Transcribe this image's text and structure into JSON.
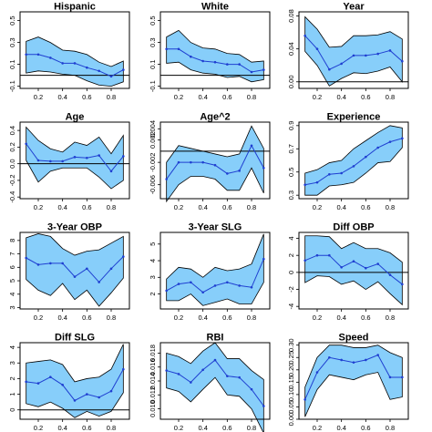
{
  "chart_data": [
    {
      "type": "line",
      "title": "Hispanic",
      "x": [
        0.1,
        0.2,
        0.3,
        0.4,
        0.5,
        0.6,
        0.7,
        0.8,
        0.9
      ],
      "series": [
        {
          "role": "estimate",
          "values": [
            0.19,
            0.19,
            0.16,
            0.11,
            0.11,
            0.07,
            0.04,
            -0.01,
            0.05
          ]
        },
        {
          "role": "upper",
          "values": [
            0.31,
            0.35,
            0.3,
            0.23,
            0.22,
            0.19,
            0.12,
            0.08,
            0.13
          ]
        },
        {
          "role": "lower",
          "values": [
            0.02,
            0.04,
            0.03,
            0.01,
            0.0,
            -0.05,
            -0.09,
            -0.1,
            -0.06
          ]
        }
      ],
      "xlim": [
        0.05,
        0.95
      ],
      "ylim": [
        -0.12,
        0.58
      ],
      "xticks": [
        0.2,
        0.4,
        0.6,
        0.8
      ],
      "xtick_labels": [
        "0.2",
        "0.4",
        "0.6",
        "0.8"
      ],
      "yticks": [
        -0.1,
        0.1,
        0.3,
        0.5
      ],
      "ytick_labels": [
        "-0.1",
        "0.1",
        "0.3",
        "0.5"
      ],
      "reference_line": 0,
      "show_x_labels": true
    },
    {
      "type": "line",
      "title": "White",
      "x": [
        0.1,
        0.2,
        0.3,
        0.4,
        0.5,
        0.6,
        0.7,
        0.8,
        0.9
      ],
      "series": [
        {
          "role": "estimate",
          "values": [
            0.24,
            0.24,
            0.17,
            0.13,
            0.12,
            0.1,
            0.1,
            0.03,
            0.05
          ]
        },
        {
          "role": "upper",
          "values": [
            0.35,
            0.41,
            0.3,
            0.25,
            0.24,
            0.2,
            0.19,
            0.12,
            0.13
          ]
        },
        {
          "role": "lower",
          "values": [
            0.11,
            0.12,
            0.05,
            0.02,
            0.01,
            -0.02,
            -0.01,
            -0.06,
            -0.04
          ]
        }
      ],
      "xlim": [
        0.05,
        0.95
      ],
      "ylim": [
        -0.12,
        0.58
      ],
      "xticks": [
        0.2,
        0.4,
        0.6,
        0.8
      ],
      "xtick_labels": [
        "0.2",
        "0.4",
        "0.6",
        "0.8"
      ],
      "yticks": [
        -0.1,
        0.1,
        0.3,
        0.5
      ],
      "ytick_labels": [
        "-0.1",
        "0.1",
        "0.3",
        "0.5"
      ],
      "reference_line": 0,
      "show_x_labels": true
    },
    {
      "type": "line",
      "title": "Year",
      "x": [
        0.1,
        0.2,
        0.3,
        0.4,
        0.5,
        0.6,
        0.7,
        0.8,
        0.9
      ],
      "series": [
        {
          "role": "estimate",
          "values": [
            0.056,
            0.04,
            0.015,
            0.022,
            0.032,
            0.032,
            0.034,
            0.038,
            0.025
          ]
        },
        {
          "role": "upper",
          "values": [
            0.079,
            0.064,
            0.042,
            0.043,
            0.056,
            0.056,
            0.057,
            0.061,
            0.052
          ]
        },
        {
          "role": "lower",
          "values": [
            0.037,
            0.02,
            -0.005,
            0.004,
            0.011,
            0.01,
            0.013,
            0.018,
            0.0
          ]
        }
      ],
      "xlim": [
        0.05,
        0.95
      ],
      "ylim": [
        -0.008,
        0.085
      ],
      "xticks": [
        0.2,
        0.4,
        0.6,
        0.8
      ],
      "xtick_labels": [
        "0.2",
        "0.4",
        "0.6",
        "0.8"
      ],
      "yticks": [
        0.0,
        0.04,
        0.08
      ],
      "ytick_labels": [
        "0.00",
        "0.04",
        "0.08"
      ],
      "reference_line": 0,
      "show_x_labels": true
    },
    {
      "type": "line",
      "title": "Age",
      "x": [
        0.1,
        0.2,
        0.3,
        0.4,
        0.5,
        0.6,
        0.7,
        0.8,
        0.9
      ],
      "series": [
        {
          "role": "estimate",
          "values": [
            0.24,
            0.04,
            0.03,
            0.03,
            0.08,
            0.07,
            0.1,
            -0.09,
            0.09
          ]
        },
        {
          "role": "upper",
          "values": [
            0.44,
            0.28,
            0.18,
            0.14,
            0.26,
            0.22,
            0.32,
            0.12,
            0.34
          ]
        },
        {
          "role": "lower",
          "values": [
            0.04,
            -0.22,
            -0.09,
            -0.05,
            -0.05,
            -0.05,
            -0.16,
            -0.3,
            -0.2
          ]
        }
      ],
      "xlim": [
        0.05,
        0.95
      ],
      "ylim": [
        -0.42,
        0.5
      ],
      "xticks": [
        0.2,
        0.4,
        0.6,
        0.8
      ],
      "xtick_labels": [
        "0.2",
        "0.4",
        "0.6",
        "0.8"
      ],
      "yticks": [
        -0.4,
        -0.2,
        0.0,
        0.2,
        0.4
      ],
      "ytick_labels": [
        "-0.4",
        "-0.2",
        "0.0",
        "0.2",
        "0.4"
      ],
      "reference_line": 0,
      "show_x_labels": true
    },
    {
      "type": "line",
      "title": "Age^2",
      "x": [
        0.1,
        0.2,
        0.3,
        0.4,
        0.5,
        0.6,
        0.7,
        0.8,
        0.9
      ],
      "series": [
        {
          "role": "estimate",
          "values": [
            -0.005,
            -0.002,
            -0.002,
            -0.002,
            -0.0025,
            -0.004,
            -0.0035,
            0.001,
            -0.003
          ]
        },
        {
          "role": "upper",
          "values": [
            -0.002,
            0.001,
            0.0005,
            0.0,
            -0.0005,
            -0.001,
            -0.0005,
            0.0045,
            0.0005
          ]
        },
        {
          "role": "lower",
          "values": [
            -0.009,
            -0.006,
            -0.0045,
            -0.0045,
            -0.005,
            -0.007,
            -0.007,
            -0.003,
            -0.0075
          ]
        }
      ],
      "xlim": [
        0.05,
        0.95
      ],
      "ylim": [
        -0.0085,
        0.0052
      ],
      "xticks": [
        0.2,
        0.4,
        0.6,
        0.8
      ],
      "xtick_labels": [
        "0.2",
        "0.4",
        "0.6",
        "0.8"
      ],
      "yticks": [
        -0.006,
        -0.002,
        0.002
      ],
      "ytick_labels": [
        "-0.006",
        "-0.002",
        "0.002"
      ],
      "extra_ytick_labels": [
        {
          "value": 0.004,
          "label": "0.004"
        }
      ],
      "reference_line": 0,
      "show_x_labels": true
    },
    {
      "type": "line",
      "title": "Experience",
      "x": [
        0.1,
        0.2,
        0.3,
        0.4,
        0.5,
        0.6,
        0.7,
        0.8,
        0.9
      ],
      "series": [
        {
          "role": "estimate",
          "values": [
            0.39,
            0.41,
            0.48,
            0.49,
            0.55,
            0.63,
            0.71,
            0.76,
            0.79
          ]
        },
        {
          "role": "upper",
          "values": [
            0.49,
            0.52,
            0.58,
            0.6,
            0.7,
            0.77,
            0.84,
            0.9,
            0.88
          ]
        },
        {
          "role": "lower",
          "values": [
            0.3,
            0.3,
            0.38,
            0.39,
            0.41,
            0.49,
            0.58,
            0.59,
            0.71
          ]
        }
      ],
      "xlim": [
        0.05,
        0.95
      ],
      "ylim": [
        0.27,
        0.93
      ],
      "xticks": [
        0.2,
        0.4,
        0.6,
        0.8
      ],
      "xtick_labels": [
        "0.2",
        "0.4",
        "0.6",
        "0.8"
      ],
      "yticks": [
        0.3,
        0.5,
        0.7,
        0.9
      ],
      "ytick_labels": [
        "0.3",
        "0.5",
        "0.7",
        "0.9"
      ],
      "reference_line": null,
      "show_x_labels": true
    },
    {
      "type": "line",
      "title": "3-Year OBP",
      "x": [
        0.1,
        0.2,
        0.3,
        0.4,
        0.5,
        0.6,
        0.7,
        0.8,
        0.9
      ],
      "series": [
        {
          "role": "estimate",
          "values": [
            6.7,
            6.2,
            6.3,
            6.3,
            5.3,
            5.9,
            4.9,
            5.9,
            6.8
          ]
        },
        {
          "role": "upper",
          "values": [
            8.2,
            8.5,
            8.3,
            7.4,
            6.9,
            7.2,
            7.3,
            7.8,
            8.3
          ]
        },
        {
          "role": "lower",
          "values": [
            5.1,
            4.3,
            3.9,
            4.8,
            3.6,
            4.3,
            3.1,
            4.1,
            5.2
          ]
        }
      ],
      "xlim": [
        0.05,
        0.95
      ],
      "ylim": [
        2.9,
        8.6
      ],
      "xticks": [
        0.2,
        0.4,
        0.6,
        0.8
      ],
      "xtick_labels": [
        "0.2",
        "0.4",
        "0.6",
        "0.8"
      ],
      "yticks": [
        3,
        4,
        5,
        6,
        7,
        8
      ],
      "ytick_labels": [
        "3",
        "4",
        "5",
        "6",
        "7",
        "8"
      ],
      "reference_line": null,
      "show_x_labels": true
    },
    {
      "type": "line",
      "title": "3-Year SLG",
      "x": [
        0.1,
        0.2,
        0.3,
        0.4,
        0.5,
        0.6,
        0.7,
        0.8,
        0.9
      ],
      "series": [
        {
          "role": "estimate",
          "values": [
            2.2,
            2.6,
            2.7,
            2.1,
            2.5,
            2.7,
            2.5,
            2.4,
            4.1
          ]
        },
        {
          "role": "upper",
          "values": [
            2.9,
            3.6,
            3.5,
            3.0,
            3.6,
            3.4,
            3.5,
            3.8,
            5.6
          ]
        },
        {
          "role": "lower",
          "values": [
            1.6,
            1.6,
            2.0,
            1.3,
            1.5,
            1.7,
            1.4,
            1.4,
            2.7
          ]
        }
      ],
      "xlim": [
        0.05,
        0.95
      ],
      "ylim": [
        1.1,
        5.7
      ],
      "xticks": [
        0.2,
        0.4,
        0.6,
        0.8
      ],
      "xtick_labels": [
        "0.2",
        "0.4",
        "0.6",
        "0.8"
      ],
      "yticks": [
        2,
        3,
        4,
        5
      ],
      "ytick_labels": [
        "2",
        "3",
        "4",
        "5"
      ],
      "reference_line": null,
      "show_x_labels": true
    },
    {
      "type": "line",
      "title": "Diff OBP",
      "x": [
        0.1,
        0.2,
        0.3,
        0.4,
        0.5,
        0.6,
        0.7,
        0.8,
        0.9
      ],
      "series": [
        {
          "role": "estimate",
          "values": [
            1.4,
            2.0,
            2.0,
            0.6,
            1.3,
            0.5,
            1.0,
            -0.3,
            -1.4
          ]
        },
        {
          "role": "upper",
          "values": [
            4.3,
            4.3,
            4.2,
            2.8,
            3.5,
            2.8,
            2.8,
            2.3,
            1.2
          ]
        },
        {
          "role": "lower",
          "values": [
            -1.2,
            -0.4,
            -0.5,
            -1.4,
            -1.0,
            -2.0,
            -1.1,
            -2.5,
            -3.8
          ]
        }
      ],
      "xlim": [
        0.05,
        0.95
      ],
      "ylim": [
        -4.3,
        4.7
      ],
      "xticks": [
        0.2,
        0.4,
        0.6,
        0.8
      ],
      "xtick_labels": [
        "0.2",
        "0.4",
        "0.6",
        "0.8"
      ],
      "yticks": [
        -4,
        -2,
        0,
        2,
        4
      ],
      "ytick_labels": [
        "-4",
        "-2",
        "0",
        "2",
        "4"
      ],
      "reference_line": 0,
      "show_x_labels": true
    },
    {
      "type": "line",
      "title": "Diff SLG",
      "x": [
        0.1,
        0.2,
        0.3,
        0.4,
        0.5,
        0.6,
        0.7,
        0.8,
        0.9
      ],
      "series": [
        {
          "role": "estimate",
          "values": [
            1.8,
            1.7,
            2.1,
            1.6,
            0.6,
            1.0,
            0.8,
            1.2,
            2.6
          ]
        },
        {
          "role": "upper",
          "values": [
            3.0,
            3.1,
            3.2,
            2.9,
            1.8,
            2.0,
            2.1,
            2.6,
            4.2
          ]
        },
        {
          "role": "lower",
          "values": [
            0.4,
            0.2,
            0.5,
            0.1,
            -0.5,
            -0.1,
            -0.4,
            -0.1,
            1.1
          ]
        }
      ],
      "xlim": [
        0.05,
        0.95
      ],
      "ylim": [
        -0.6,
        4.3
      ],
      "xticks": [
        0.2,
        0.4,
        0.6,
        0.8
      ],
      "xtick_labels": [
        "0.2",
        "0.4",
        "0.6",
        "0.8"
      ],
      "yticks": [
        0,
        1,
        2,
        3,
        4
      ],
      "ytick_labels": [
        "0",
        "1",
        "2",
        "3",
        "4"
      ],
      "reference_line": 0,
      "show_x_labels": true
    },
    {
      "type": "line",
      "title": "RBI",
      "x": [
        0.1,
        0.2,
        0.3,
        0.4,
        0.5,
        0.6,
        0.7,
        0.8,
        0.9
      ],
      "series": [
        {
          "role": "estimate",
          "values": [
            0.0155,
            0.015,
            0.0138,
            0.0156,
            0.017,
            0.0147,
            0.0145,
            0.0128,
            0.0104
          ]
        },
        {
          "role": "upper",
          "values": [
            0.018,
            0.0175,
            0.0165,
            0.0183,
            0.0195,
            0.0172,
            0.0172,
            0.0155,
            0.0142
          ]
        },
        {
          "role": "lower",
          "values": [
            0.013,
            0.0125,
            0.011,
            0.0128,
            0.0145,
            0.012,
            0.0118,
            0.01,
            0.0065
          ]
        }
      ],
      "xlim": [
        0.05,
        0.95
      ],
      "ylim": [
        0.0085,
        0.0195
      ],
      "xticks": [
        0.2,
        0.4,
        0.6,
        0.8
      ],
      "xtick_labels": [
        "0.2",
        "0.4",
        "0.6",
        "0.8"
      ],
      "yticks": [
        0.01,
        0.012,
        0.014,
        0.016,
        0.018
      ],
      "ytick_labels": [
        "0.010",
        "0.012",
        "0.014",
        "0.016",
        "0.018"
      ],
      "reference_line": null,
      "show_x_labels": true
    },
    {
      "type": "line",
      "title": "Speed",
      "x": [
        0.1,
        0.2,
        0.3,
        0.4,
        0.5,
        0.6,
        0.7,
        0.8,
        0.9
      ],
      "series": [
        {
          "role": "estimate",
          "values": [
            0.08,
            0.19,
            0.25,
            0.24,
            0.23,
            0.24,
            0.26,
            0.17,
            0.17
          ]
        },
        {
          "role": "upper",
          "values": [
            0.13,
            0.25,
            0.3,
            0.3,
            0.29,
            0.29,
            0.3,
            0.27,
            0.25
          ]
        },
        {
          "role": "lower",
          "values": [
            0.01,
            0.12,
            0.18,
            0.17,
            0.16,
            0.18,
            0.19,
            0.08,
            0.09
          ]
        }
      ],
      "xlim": [
        0.05,
        0.95
      ],
      "ylim": [
        0.0,
        0.31
      ],
      "xticks": [
        0.2,
        0.4,
        0.6,
        0.8
      ],
      "xtick_labels": [
        "0.2",
        "0.4",
        "0.6",
        "0.8"
      ],
      "yticks": [
        0.0,
        0.05,
        0.1,
        0.15,
        0.2,
        0.25,
        0.3
      ],
      "ytick_labels": [
        "0.00",
        "0.05",
        "0.10",
        "0.15",
        "0.20",
        "0.25",
        "0.30"
      ],
      "reference_line": null,
      "show_x_labels": true
    }
  ],
  "colors": {
    "band_fill": "#87cefa",
    "band_edge": "#000000",
    "estimate_line": "#1f3fd1",
    "reference_line": "#000000",
    "frame": "#000000"
  }
}
